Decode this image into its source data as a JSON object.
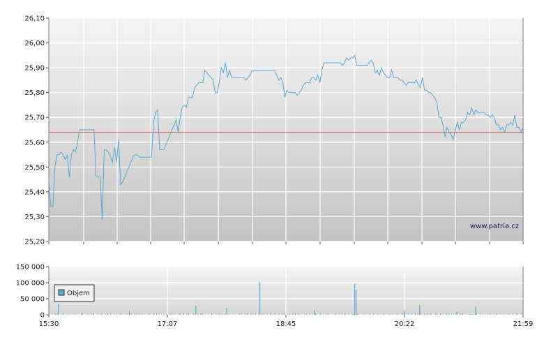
{
  "chart_data": [
    {
      "type": "line",
      "title": "",
      "xlabel": "",
      "ylabel": "",
      "watermark": "www.patria.cz",
      "ylim": [
        25.2,
        26.1
      ],
      "y_ticks": [
        "26,10",
        "26,00",
        "25,90",
        "25,80",
        "25,70",
        "25,60",
        "25,50",
        "25,40",
        "25,30",
        "25,20"
      ],
      "y_tick_values": [
        26.1,
        26.0,
        25.9,
        25.8,
        25.7,
        25.6,
        25.5,
        25.4,
        25.3,
        25.2
      ],
      "x_range": [
        "15:30",
        "21:59"
      ],
      "reference_line": {
        "value": 25.64,
        "color": "#e06060"
      },
      "line_color": "#5aaad2",
      "series": [
        {
          "values": [
            25.45,
            25.34,
            25.34,
            25.5,
            25.55,
            25.55,
            25.56,
            25.55,
            25.53,
            25.55,
            25.46,
            25.55,
            25.57,
            25.56,
            25.6,
            25.65,
            25.65,
            25.65,
            25.65,
            25.65,
            25.65,
            25.65,
            25.65,
            25.46,
            25.46,
            25.46,
            25.29,
            25.57,
            25.57,
            25.56,
            25.54,
            25.52,
            25.58,
            25.52,
            25.61,
            25.43,
            25.44,
            25.46,
            25.48,
            25.5,
            25.52,
            25.54,
            25.55,
            25.55,
            25.54,
            25.54,
            25.54,
            25.54,
            25.54,
            25.54,
            25.54,
            25.68,
            25.72,
            25.73,
            25.57,
            25.57,
            25.57,
            25.59,
            25.61,
            25.63,
            25.65,
            25.67,
            25.69,
            25.64,
            25.7,
            25.74,
            25.75,
            25.74,
            25.78,
            25.78,
            25.78,
            25.82,
            25.83,
            25.84,
            25.84,
            25.84,
            25.89,
            25.88,
            25.87,
            25.86,
            25.85,
            25.8,
            25.8,
            25.84,
            25.9,
            25.88,
            25.92,
            25.86,
            25.89,
            25.86,
            25.86,
            25.86,
            25.86,
            25.86,
            25.86,
            25.86,
            25.85,
            25.86,
            25.87,
            25.89,
            25.89,
            25.89,
            25.89,
            25.89,
            25.89,
            25.89,
            25.89,
            25.89,
            25.89,
            25.89,
            25.89,
            25.87,
            25.85,
            25.86,
            25.84,
            25.78,
            25.81,
            25.8,
            25.8,
            25.8,
            25.8,
            25.79,
            25.8,
            25.81,
            25.83,
            25.84,
            25.84,
            25.84,
            25.86,
            25.86,
            25.85,
            25.87,
            25.84,
            25.89,
            25.92,
            25.92,
            25.92,
            25.92,
            25.92,
            25.92,
            25.92,
            25.92,
            25.92,
            25.91,
            25.92,
            25.94,
            25.93,
            25.94,
            25.94,
            25.95,
            25.91,
            25.91,
            25.91,
            25.91,
            25.91,
            25.91,
            25.92,
            25.93,
            25.92,
            25.88,
            25.89,
            25.87,
            25.9,
            25.88,
            25.87,
            25.86,
            25.86,
            25.89,
            25.86,
            25.86,
            25.86,
            25.85,
            25.85,
            25.84,
            25.83,
            25.84,
            25.84,
            25.84,
            25.84,
            25.85,
            25.83,
            25.82,
            25.86,
            25.81,
            25.81,
            25.8,
            25.8,
            25.79,
            25.78,
            25.76,
            25.7,
            25.7,
            25.67,
            25.62,
            25.66,
            25.64,
            25.63,
            25.61,
            25.65,
            25.68,
            25.65,
            25.68,
            25.68,
            25.69,
            25.72,
            25.71,
            25.74,
            25.71,
            25.73,
            25.72,
            25.72,
            25.72,
            25.72,
            25.71,
            25.71,
            25.7,
            25.71,
            25.7,
            25.67,
            25.67,
            25.65,
            25.66,
            25.64,
            25.67,
            25.67,
            25.68,
            25.67,
            25.71,
            25.66,
            25.66,
            25.64,
            25.66
          ]
        }
      ]
    },
    {
      "type": "bar",
      "title": "",
      "xlabel": "",
      "ylabel": "",
      "ylim": [
        0,
        150000
      ],
      "y_ticks": [
        "150 000",
        "100 000",
        "50 000",
        "0"
      ],
      "y_tick_values": [
        150000,
        100000,
        50000,
        0
      ],
      "x_ticks": [
        "15:30",
        "17:07",
        "18:45",
        "20:22",
        "21:59"
      ],
      "legend": {
        "label": "Objem",
        "placement": "top-left"
      },
      "bar_color": "#5aaad2",
      "series": [
        {
          "name": "Objem",
          "spikes": [
            {
              "t": 0.02,
              "v": 34000
            },
            {
              "t": 0.31,
              "v": 28000
            },
            {
              "t": 0.375,
              "v": 22000
            },
            {
              "t": 0.445,
              "v": 102000
            },
            {
              "t": 0.645,
              "v": 96000
            },
            {
              "t": 0.648,
              "v": 78000
            },
            {
              "t": 0.75,
              "v": 12000
            },
            {
              "t": 0.782,
              "v": 30000
            },
            {
              "t": 0.9,
              "v": 25000
            },
            {
              "t": 0.17,
              "v": 12000
            },
            {
              "t": 0.56,
              "v": 15000
            },
            {
              "t": 0.86,
              "v": 10000
            }
          ]
        }
      ]
    }
  ]
}
